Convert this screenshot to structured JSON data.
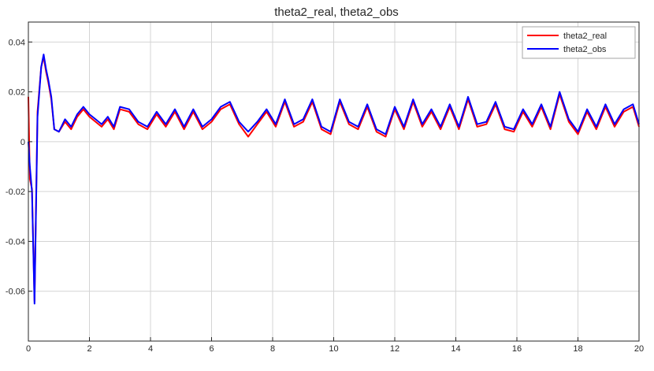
{
  "chart_data": {
    "type": "line",
    "title": "theta2_real, theta2_obs",
    "xlabel": "",
    "ylabel": "",
    "xlim": [
      0,
      20
    ],
    "ylim": [
      -0.08,
      0.048
    ],
    "x_ticks": [
      0,
      2,
      4,
      6,
      8,
      10,
      12,
      14,
      16,
      18,
      20
    ],
    "x_tick_labels": [
      "0",
      "2",
      "4",
      "6",
      "8",
      "10",
      "12",
      "14",
      "16",
      "18",
      "20"
    ],
    "y_ticks": [
      -0.06,
      -0.04,
      -0.02,
      0,
      0.02,
      0.04
    ],
    "y_tick_labels": [
      "-0.06",
      "-0.04",
      "-0.02",
      "0",
      "0.02",
      "0.04"
    ],
    "grid": true,
    "legend_position": "top-right",
    "series": [
      {
        "name": "theta2_real",
        "color": "#ff0000",
        "x": [
          0,
          0.05,
          0.12,
          0.2,
          0.3,
          0.42,
          0.5,
          0.58,
          0.65,
          0.75,
          0.85,
          1.0,
          1.2,
          1.4,
          1.6,
          1.8,
          2.0,
          2.2,
          2.4,
          2.6,
          2.8,
          3.0,
          3.3,
          3.6,
          3.9,
          4.2,
          4.5,
          4.8,
          5.1,
          5.4,
          5.7,
          6.0,
          6.3,
          6.6,
          6.9,
          7.2,
          7.5,
          7.8,
          8.1,
          8.4,
          8.7,
          9.0,
          9.3,
          9.6,
          9.9,
          10.2,
          10.5,
          10.8,
          11.1,
          11.4,
          11.7,
          12.0,
          12.3,
          12.6,
          12.9,
          13.2,
          13.5,
          13.8,
          14.1,
          14.4,
          14.7,
          15.0,
          15.3,
          15.6,
          15.9,
          16.2,
          16.5,
          16.8,
          17.1,
          17.4,
          17.7,
          18.0,
          18.3,
          18.6,
          18.9,
          19.2,
          19.5,
          19.8,
          20.0
        ],
        "values": [
          0.018,
          -0.015,
          -0.019,
          -0.064,
          0.012,
          0.03,
          0.034,
          0.028,
          0.024,
          0.017,
          0.005,
          0.004,
          0.008,
          0.005,
          0.01,
          0.013,
          0.01,
          0.008,
          0.006,
          0.009,
          0.005,
          0.013,
          0.012,
          0.007,
          0.005,
          0.011,
          0.006,
          0.012,
          0.005,
          0.012,
          0.005,
          0.008,
          0.013,
          0.015,
          0.007,
          0.002,
          0.007,
          0.012,
          0.006,
          0.016,
          0.006,
          0.008,
          0.016,
          0.005,
          0.003,
          0.016,
          0.007,
          0.005,
          0.014,
          0.004,
          0.002,
          0.013,
          0.005,
          0.016,
          0.006,
          0.012,
          0.005,
          0.014,
          0.005,
          0.017,
          0.006,
          0.007,
          0.015,
          0.005,
          0.004,
          0.012,
          0.006,
          0.014,
          0.005,
          0.019,
          0.008,
          0.003,
          0.012,
          0.005,
          0.014,
          0.006,
          0.012,
          0.014,
          0.006
        ]
      },
      {
        "name": "theta2_obs",
        "color": "#0000ff",
        "x": [
          0,
          0.05,
          0.12,
          0.2,
          0.3,
          0.42,
          0.5,
          0.58,
          0.65,
          0.75,
          0.85,
          1.0,
          1.2,
          1.4,
          1.6,
          1.8,
          2.0,
          2.2,
          2.4,
          2.6,
          2.8,
          3.0,
          3.3,
          3.6,
          3.9,
          4.2,
          4.5,
          4.8,
          5.1,
          5.4,
          5.7,
          6.0,
          6.3,
          6.6,
          6.9,
          7.2,
          7.5,
          7.8,
          8.1,
          8.4,
          8.7,
          9.0,
          9.3,
          9.6,
          9.9,
          10.2,
          10.5,
          10.8,
          11.1,
          11.4,
          11.7,
          12.0,
          12.3,
          12.6,
          12.9,
          13.2,
          13.5,
          13.8,
          14.1,
          14.4,
          14.7,
          15.0,
          15.3,
          15.6,
          15.9,
          16.2,
          16.5,
          16.8,
          17.1,
          17.4,
          17.7,
          18.0,
          18.3,
          18.6,
          18.9,
          19.2,
          19.5,
          19.8,
          20.0
        ],
        "values": [
          0.0,
          -0.01,
          -0.02,
          -0.065,
          0.01,
          0.03,
          0.035,
          0.029,
          0.025,
          0.018,
          0.005,
          0.004,
          0.009,
          0.006,
          0.011,
          0.014,
          0.011,
          0.009,
          0.007,
          0.01,
          0.006,
          0.014,
          0.013,
          0.008,
          0.006,
          0.012,
          0.007,
          0.013,
          0.006,
          0.013,
          0.006,
          0.009,
          0.014,
          0.016,
          0.008,
          0.004,
          0.008,
          0.013,
          0.007,
          0.017,
          0.007,
          0.009,
          0.017,
          0.006,
          0.004,
          0.017,
          0.008,
          0.006,
          0.015,
          0.005,
          0.003,
          0.014,
          0.006,
          0.017,
          0.007,
          0.013,
          0.006,
          0.015,
          0.006,
          0.018,
          0.007,
          0.008,
          0.016,
          0.006,
          0.005,
          0.013,
          0.007,
          0.015,
          0.006,
          0.02,
          0.009,
          0.004,
          0.013,
          0.006,
          0.015,
          0.007,
          0.013,
          0.015,
          0.007
        ]
      }
    ]
  }
}
